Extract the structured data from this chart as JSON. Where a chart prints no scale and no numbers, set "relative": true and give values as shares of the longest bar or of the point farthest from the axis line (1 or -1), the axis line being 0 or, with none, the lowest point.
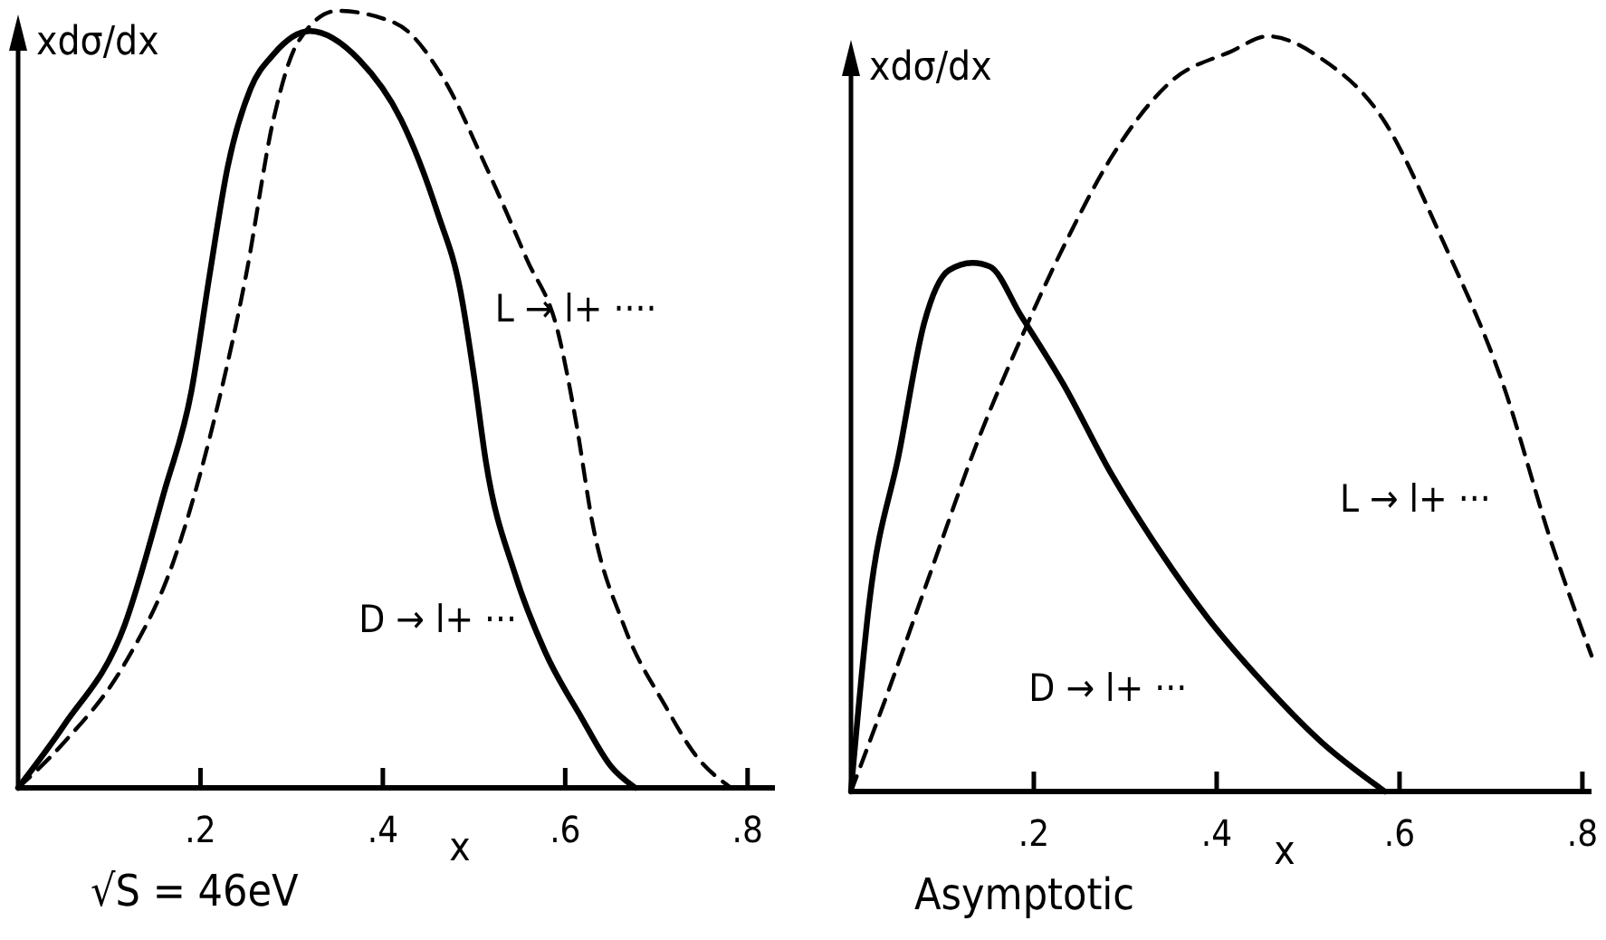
{
  "chart_data": [
    {
      "type": "line",
      "ylabel": "xdσ/dx",
      "xlabel": "x",
      "relative": true,
      "xlim": [
        0,
        0.83
      ],
      "xticks": [
        {
          "value": 0.2,
          "label": ".2"
        },
        {
          "value": 0.4,
          "label": ".4"
        },
        {
          "value": 0.6,
          "label": ".6"
        },
        {
          "value": 0.8,
          "label": ".8"
        }
      ],
      "grid": false,
      "marker": "none",
      "annotations": [
        "√S = 46eV"
      ],
      "series": [
        {
          "name": "D → l+ ···",
          "color": "#000000",
          "line_style": "solid",
          "x": [
            0,
            0.05,
            0.117,
            0.16,
            0.19,
            0.21,
            0.23,
            0.255,
            0.28,
            0.32,
            0.374,
            0.42,
            0.46,
            0.485,
            0.5,
            0.513,
            0.545,
            0.578,
            0.618,
            0.65,
            0.677
          ],
          "values": [
            0,
            0.08,
            0.21,
            0.38,
            0.51,
            0.66,
            0.8,
            0.9,
            0.944,
            0.974,
            0.937,
            0.86,
            0.74,
            0.64,
            0.53,
            0.42,
            0.275,
            0.175,
            0.09,
            0.028,
            0
          ]
        },
        {
          "name": "L → l+ ····",
          "color": "#000000",
          "line_style": "dashed",
          "x": [
            0,
            0.05,
            0.117,
            0.17,
            0.21,
            0.25,
            0.28,
            0.307,
            0.35,
            0.414,
            0.466,
            0.513,
            0.558,
            0.592,
            0.612,
            0.63,
            0.664,
            0.71,
            0.743,
            0.782
          ],
          "values": [
            0,
            0.058,
            0.16,
            0.29,
            0.45,
            0.66,
            0.86,
            0.96,
            1,
            0.984,
            0.914,
            0.8,
            0.68,
            0.587,
            0.47,
            0.34,
            0.21,
            0.105,
            0.042,
            0
          ]
        }
      ]
    },
    {
      "type": "line",
      "ylabel": "xdσ/dx",
      "xlabel": "x",
      "relative": true,
      "xlim": [
        0,
        0.81
      ],
      "xticks": [
        {
          "value": 0.2,
          "label": ".2"
        },
        {
          "value": 0.4,
          "label": ".4"
        },
        {
          "value": 0.6,
          "label": ".6"
        },
        {
          "value": 0.8,
          "label": ".8"
        }
      ],
      "grid": false,
      "marker": "none",
      "annotations": [
        "Asymptotic"
      ],
      "series": [
        {
          "name": "D → l+ ···",
          "color": "#000000",
          "line_style": "solid",
          "x": [
            0,
            0.02,
            0.053,
            0.08,
            0.107,
            0.133,
            0.152,
            0.186,
            0.232,
            0.285,
            0.337,
            0.39,
            0.45,
            0.515,
            0.584
          ],
          "values": [
            0,
            0.25,
            0.45,
            0.62,
            0.69,
            0.7,
            0.695,
            0.63,
            0.54,
            0.42,
            0.32,
            0.23,
            0.145,
            0.065,
            0
          ]
        },
        {
          "name": "L → l+ ···",
          "color": "#000000",
          "line_style": "dashed",
          "x": [
            0,
            0.04,
            0.087,
            0.139,
            0.186,
            0.232,
            0.285,
            0.35,
            0.416,
            0.456,
            0.515,
            0.582,
            0.647,
            0.713,
            0.766,
            0.81
          ],
          "values": [
            0,
            0.13,
            0.29,
            0.465,
            0.6,
            0.72,
            0.84,
            0.94,
            0.98,
            1,
            0.97,
            0.89,
            0.73,
            0.54,
            0.33,
            0.18
          ]
        }
      ]
    }
  ]
}
